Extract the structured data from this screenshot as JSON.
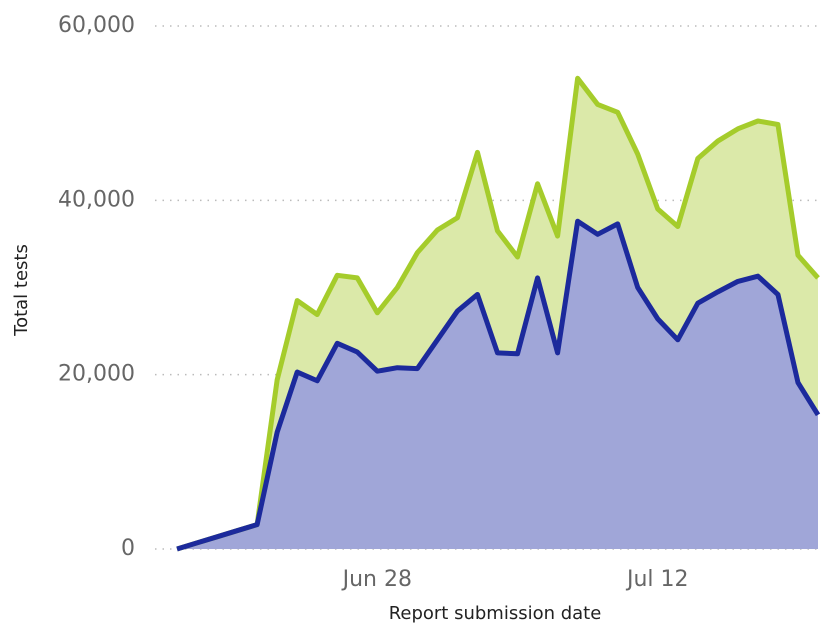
{
  "chart_data": {
    "type": "area",
    "x_label": "Report submission date",
    "y_label": "Total tests",
    "x": [
      "Jun 18",
      "Jun 19",
      "Jun 20",
      "Jun 21",
      "Jun 22",
      "Jun 23",
      "Jun 24",
      "Jun 25",
      "Jun 26",
      "Jun 27",
      "Jun 28",
      "Jun 29",
      "Jun 30",
      "Jul 1",
      "Jul 2",
      "Jul 3",
      "Jul 4",
      "Jul 5",
      "Jul 6",
      "Jul 7",
      "Jul 8",
      "Jul 9",
      "Jul 10",
      "Jul 11",
      "Jul 12",
      "Jul 13",
      "Jul 14",
      "Jul 15",
      "Jul 16",
      "Jul 17",
      "Jul 18",
      "Jul 19",
      "Jul 20"
    ],
    "series": [
      {
        "color": "#a5cc2b",
        "fill": "#dbe9a9",
        "values": [
          0,
          700,
          1400,
          2100,
          2800,
          19400,
          28500,
          26900,
          31400,
          31100,
          27100,
          30000,
          34000,
          36600,
          38000,
          45500,
          36500,
          33500,
          41900,
          35900,
          54000,
          51000,
          50100,
          45300,
          39000,
          37000,
          44800,
          46800,
          48200,
          49100,
          48700,
          33700,
          31100
        ]
      },
      {
        "color": "#1c2a9c",
        "fill": "#a0a6d8",
        "values": [
          0,
          700,
          1400,
          2100,
          2800,
          13400,
          20300,
          19300,
          23600,
          22600,
          20400,
          20800,
          20700,
          24000,
          27300,
          29200,
          22500,
          22400,
          31100,
          22500,
          37600,
          36100,
          37300,
          30000,
          26400,
          24000,
          28200,
          29500,
          30700,
          31300,
          29200,
          19100,
          15400
        ]
      }
    ],
    "xticks": [
      "Jun 28",
      "Jul 12"
    ],
    "ylim": [
      0,
      60000
    ],
    "yticks": [
      0,
      {
        "value": 20000,
        "label": "20,000"
      },
      {
        "value": 40000,
        "label": "40,000"
      },
      {
        "value": 60000,
        "label": "60,000"
      }
    ],
    "grid": true
  }
}
